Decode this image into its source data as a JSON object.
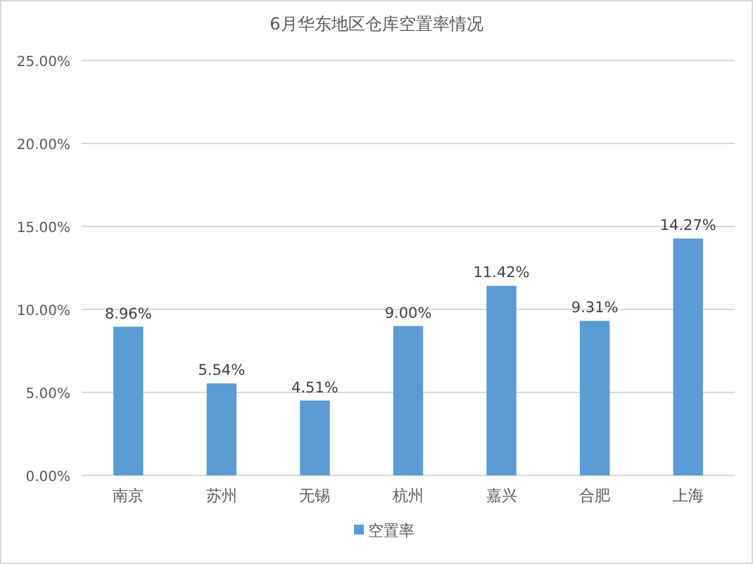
{
  "chart_data": {
    "type": "bar",
    "title": "6月华东地区仓库空置率情况",
    "categories": [
      "南京",
      "苏州",
      "无锡",
      "杭州",
      "嘉兴",
      "合肥",
      "上海"
    ],
    "series": [
      {
        "name": "空置率",
        "color": "#5b9bd5",
        "values": [
          8.96,
          5.54,
          4.51,
          9.0,
          11.42,
          9.31,
          14.27
        ],
        "value_labels": [
          "8.96%",
          "5.54%",
          "4.51%",
          "9.00%",
          "11.42%",
          "9.31%",
          "14.27%"
        ]
      }
    ],
    "ylim": [
      0,
      25
    ],
    "yticks": [
      {
        "value": 0,
        "label": "0.00%"
      },
      {
        "value": 5,
        "label": "5.00%"
      },
      {
        "value": 10,
        "label": "10.00%"
      },
      {
        "value": 15,
        "label": "15.00%"
      },
      {
        "value": 20,
        "label": "20.00%"
      },
      {
        "value": 25,
        "label": "25.00%"
      }
    ],
    "grid": "y",
    "legend": "bottom"
  }
}
